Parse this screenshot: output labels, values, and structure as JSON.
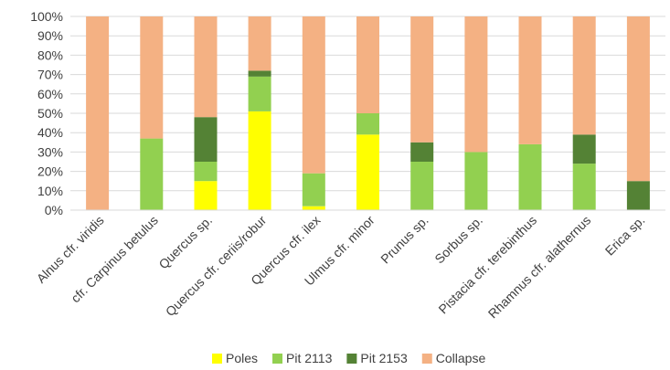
{
  "chart_data": {
    "type": "bar",
    "stacked": true,
    "percent": true,
    "categories": [
      "Alnus cfr. viridis",
      "cfr. Carpinus betulus",
      "Quercus sp.",
      "Quercus cfr. ceriis/robur",
      "Quercus cfr. ilex",
      "Ulmus cfr. minor",
      "Prunus sp.",
      "Sorbus sp.",
      "Pistacia cfr. terebinthus",
      "Rhamnus cfr. alathernus",
      "Erica sp."
    ],
    "series": [
      {
        "name": "Poles",
        "color": "#ffff00",
        "values": [
          0,
          0,
          15,
          51,
          2,
          39,
          0,
          0,
          0,
          0,
          0
        ]
      },
      {
        "name": "Pit 2113",
        "color": "#92d050",
        "values": [
          0,
          37,
          10,
          18,
          17,
          11,
          25,
          30,
          34,
          24,
          0
        ]
      },
      {
        "name": "Pit 2153",
        "color": "#548235",
        "values": [
          0,
          0,
          23,
          3,
          0,
          0,
          10,
          0,
          0,
          15,
          15
        ]
      },
      {
        "name": "Collapse",
        "color": "#f4b183",
        "values": [
          100,
          63,
          52,
          28,
          81,
          50,
          65,
          70,
          66,
          61,
          85
        ]
      }
    ],
    "y_ticks": [
      "0%",
      "10%",
      "20%",
      "30%",
      "40%",
      "50%",
      "60%",
      "70%",
      "80%",
      "90%",
      "100%"
    ],
    "ylim": [
      0,
      100
    ],
    "grid": true,
    "legend_position": "bottom",
    "title": "",
    "xlabel": "",
    "ylabel": ""
  }
}
